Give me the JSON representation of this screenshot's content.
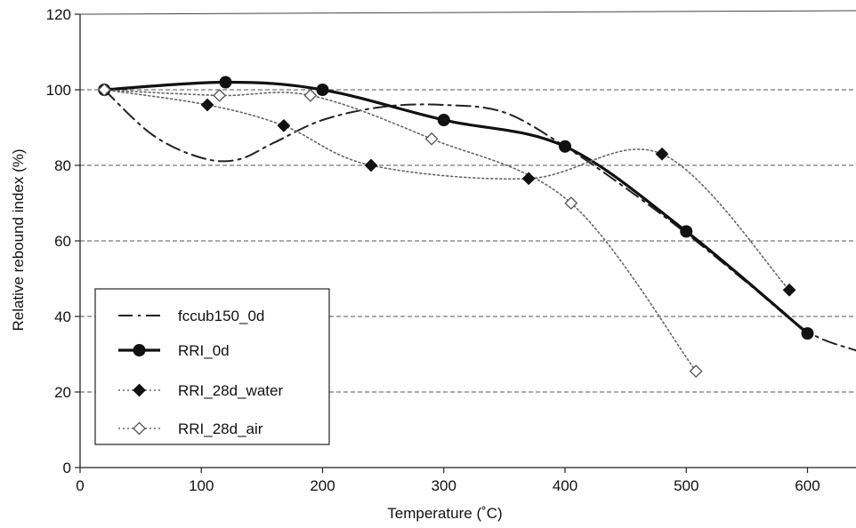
{
  "chart_data": {
    "type": "line",
    "xlabel": "Temperature (˚C)",
    "ylabel": "Relative rebound index (%)",
    "xlim": [
      0,
      640
    ],
    "ylim": [
      0,
      120
    ],
    "xticks": [
      0,
      100,
      200,
      300,
      400,
      500,
      600
    ],
    "yticks": [
      0,
      20,
      40,
      60,
      80,
      100,
      120
    ],
    "grid": "horizontal dashed at y = 20, 40, 60, 80, 100",
    "legend_position": "bottom-left",
    "series": [
      {
        "name": "fccub150_0d",
        "style": "dash-dot",
        "marker": "none",
        "color": "#222222",
        "x": [
          20,
          60,
          100,
          130,
          160,
          200,
          250,
          300,
          350,
          400,
          450,
          500,
          550,
          600,
          640
        ],
        "y": [
          100,
          88,
          82,
          81.5,
          86,
          92,
          95.5,
          96,
          94,
          85,
          74,
          62,
          49,
          36,
          31
        ]
      },
      {
        "name": "RRI_0d",
        "style": "solid-thick",
        "marker": "filled-circle",
        "color": "#111111",
        "x": [
          20,
          120,
          200,
          300,
          400,
          500,
          600
        ],
        "y": [
          100,
          102,
          100,
          92,
          85,
          62.5,
          35.5
        ]
      },
      {
        "name": "RRI_28d_water",
        "style": "dotted",
        "marker": "filled-diamond",
        "color": "#111111",
        "x": [
          20,
          105,
          168,
          240,
          370,
          480,
          585
        ],
        "y": [
          100,
          96,
          90.5,
          80,
          76.5,
          83,
          47
        ]
      },
      {
        "name": "RRI_28d_air",
        "style": "dotted",
        "marker": "open-diamond",
        "color": "#444444",
        "x": [
          20,
          115,
          190,
          290,
          405,
          508
        ],
        "y": [
          100,
          98.5,
          98.5,
          87,
          70,
          25.5
        ]
      }
    ]
  }
}
